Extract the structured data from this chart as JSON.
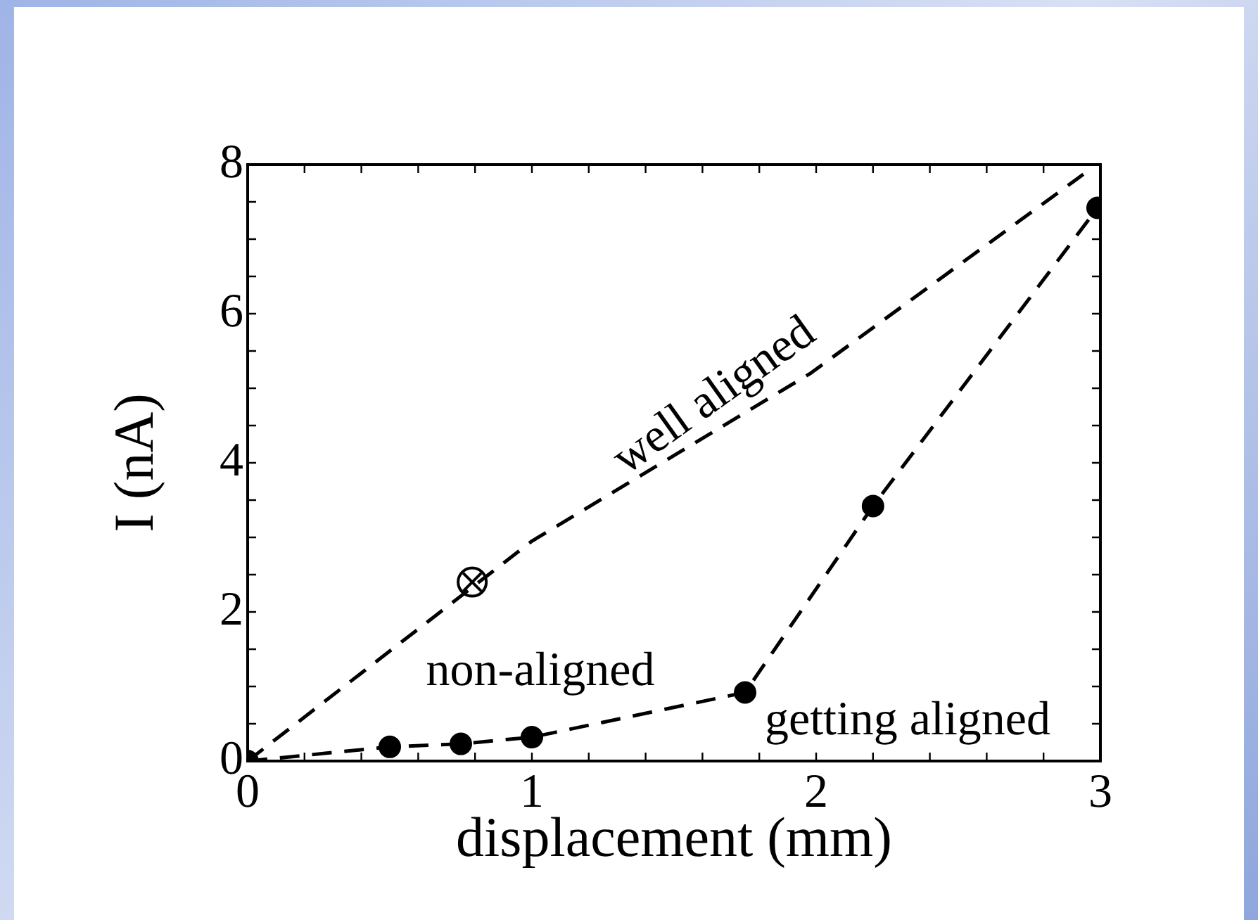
{
  "chart_data": {
    "type": "line",
    "xlabel": "displacement (mm)",
    "ylabel": "I (nA)",
    "xlim": [
      0,
      3
    ],
    "ylim": [
      0,
      8
    ],
    "xticks": [
      0,
      {
        "value": 0.2,
        "label": null
      },
      {
        "value": 0.4,
        "label": null
      },
      {
        "value": 0.6,
        "label": null
      },
      {
        "value": 0.8,
        "label": null
      },
      1,
      {
        "value": 1.2,
        "label": null
      },
      {
        "value": 1.4,
        "label": null
      },
      {
        "value": 1.6,
        "label": null
      },
      {
        "value": 1.8,
        "label": null
      },
      2,
      {
        "value": 2.2,
        "label": null
      },
      {
        "value": 2.4,
        "label": null
      },
      {
        "value": 2.6,
        "label": null
      },
      {
        "value": 2.8,
        "label": null
      },
      3
    ],
    "yticks": [
      0,
      {
        "value": 0.5,
        "label": null
      },
      {
        "value": 1,
        "label": null
      },
      {
        "value": 1.5,
        "label": null
      },
      2,
      {
        "value": 2.5,
        "label": null
      },
      {
        "value": 3,
        "label": null
      },
      {
        "value": 3.5,
        "label": null
      },
      4,
      {
        "value": 4.5,
        "label": null
      },
      {
        "value": 5,
        "label": null
      },
      {
        "value": 5.5,
        "label": null
      },
      6,
      {
        "value": 6.5,
        "label": null
      },
      {
        "value": 7,
        "label": null
      },
      {
        "value": 7.5,
        "label": null
      },
      8
    ],
    "grid": false,
    "legend": false,
    "series": [
      {
        "color": "#000000",
        "marker": "none",
        "line_style": "dashed",
        "x": [
          0,
          1,
          1.98,
          2.94
        ],
        "values": [
          0,
          2.95,
          5.2,
          7.87
        ]
      },
      {
        "type": "scatter",
        "color": "#000000",
        "marker": "cross",
        "x": [
          0.79
        ],
        "values": [
          2.4
        ]
      },
      {
        "color": "#000000",
        "marker": "circle",
        "line_style": "dashed",
        "x": [
          0,
          0.5,
          0.75,
          1,
          1.75,
          2.2,
          2.99
        ],
        "values": [
          0,
          0.19,
          0.23,
          0.32,
          0.92,
          3.42,
          7.42
        ]
      }
    ],
    "annotations": [
      "well aligned",
      "non-aligned",
      "getting aligned"
    ]
  }
}
